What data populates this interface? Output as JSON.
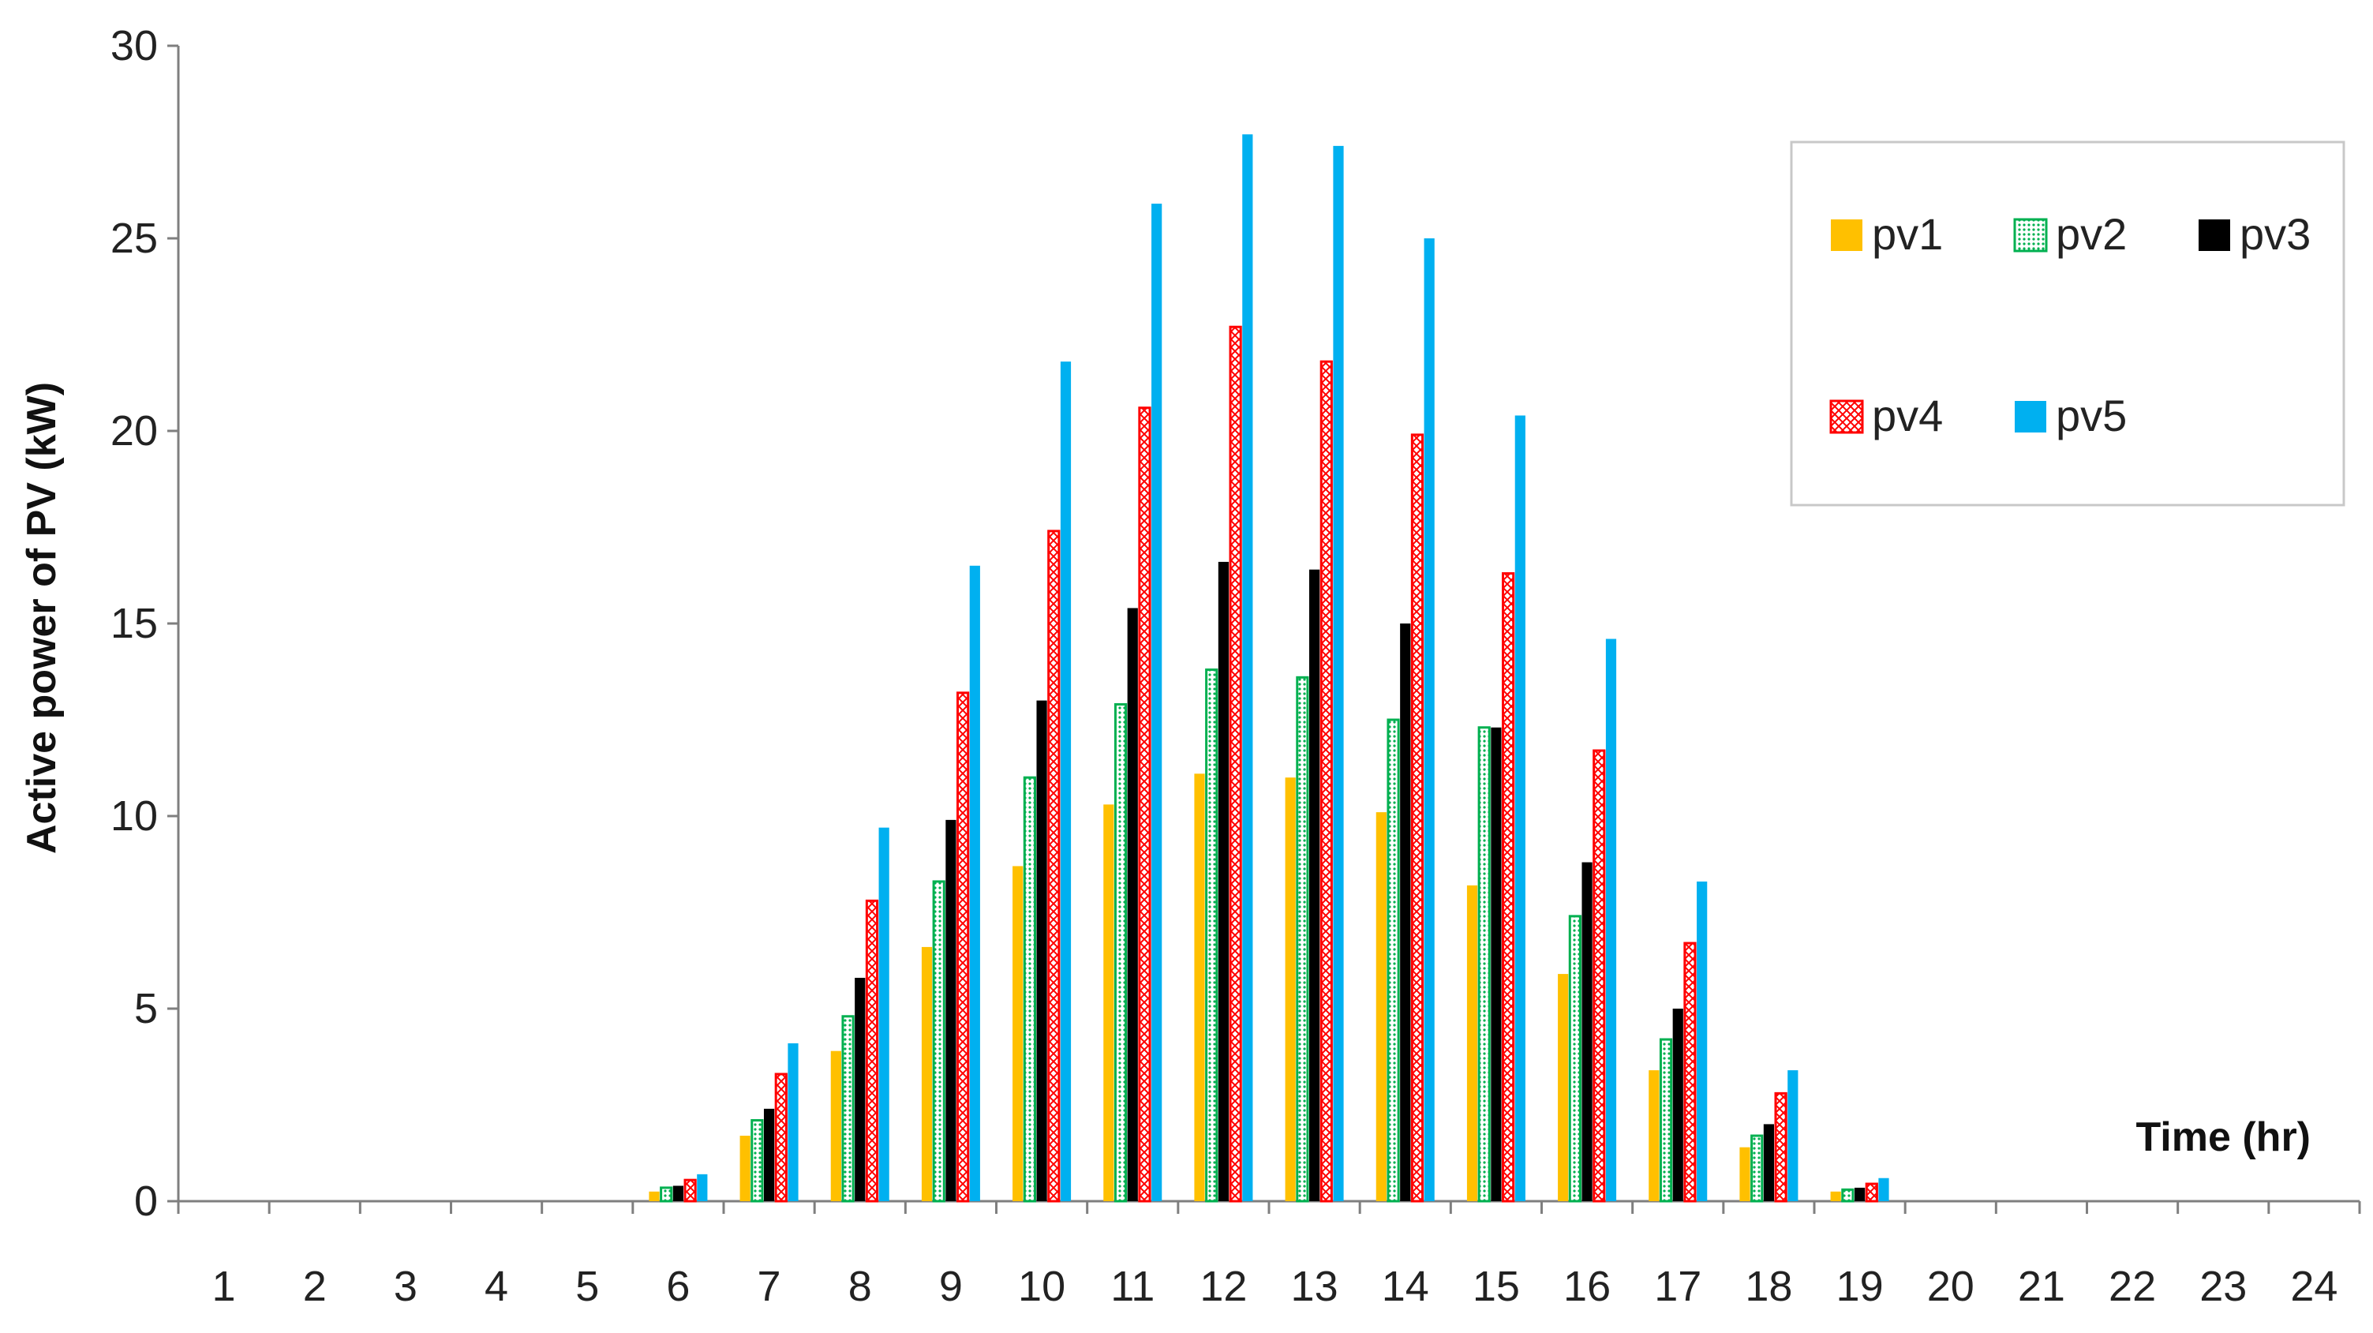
{
  "chart_data": {
    "type": "bar",
    "title": "",
    "xlabel": "Time (hr)",
    "ylabel": "Active power of PV (kW)",
    "ylim": [
      0,
      30
    ],
    "yticks": [
      "0",
      "5",
      "10",
      "15",
      "20",
      "25",
      "30"
    ],
    "categories": [
      "1",
      "2",
      "3",
      "4",
      "5",
      "6",
      "7",
      "8",
      "9",
      "10",
      "11",
      "12",
      "13",
      "14",
      "15",
      "16",
      "17",
      "18",
      "19",
      "20",
      "21",
      "22",
      "23",
      "24"
    ],
    "grid": false,
    "legend_position": "top-right",
    "series": [
      {
        "name": "pv1",
        "color": "#FFC000",
        "pattern": "solid",
        "values": [
          0,
          0,
          0,
          0,
          0,
          0.25,
          1.7,
          3.9,
          6.6,
          8.7,
          10.3,
          11.1,
          11.0,
          10.1,
          8.2,
          5.9,
          3.4,
          1.4,
          0.25,
          0,
          0,
          0,
          0,
          0
        ]
      },
      {
        "name": "pv2",
        "color": "#00B050",
        "pattern": "dotted",
        "values": [
          0,
          0,
          0,
          0,
          0,
          0.35,
          2.1,
          4.8,
          8.3,
          11.0,
          12.9,
          13.8,
          13.6,
          12.5,
          12.3,
          7.4,
          4.2,
          1.7,
          0.3,
          0,
          0,
          0,
          0,
          0
        ]
      },
      {
        "name": "pv3",
        "color": "#000000",
        "pattern": "solid",
        "values": [
          0,
          0,
          0,
          0,
          0,
          0.4,
          2.4,
          5.8,
          9.9,
          13.0,
          15.4,
          16.6,
          16.4,
          15.0,
          12.3,
          8.8,
          5.0,
          2.0,
          0.35,
          0,
          0,
          0,
          0,
          0
        ]
      },
      {
        "name": "pv4",
        "color": "#FF0000",
        "pattern": "crosshatch",
        "values": [
          0,
          0,
          0,
          0,
          0,
          0.55,
          3.3,
          7.8,
          13.2,
          17.4,
          20.6,
          22.7,
          21.8,
          19.9,
          16.3,
          11.7,
          6.7,
          2.8,
          0.45,
          0,
          0,
          0,
          0,
          0
        ]
      },
      {
        "name": "pv5",
        "color": "#00B0F0",
        "pattern": "solid",
        "values": [
          0,
          0,
          0,
          0,
          0,
          0.7,
          4.1,
          9.7,
          16.5,
          21.8,
          25.9,
          27.7,
          27.4,
          25.0,
          20.4,
          14.6,
          8.3,
          3.4,
          0.6,
          0,
          0,
          0,
          0,
          0
        ]
      }
    ]
  }
}
